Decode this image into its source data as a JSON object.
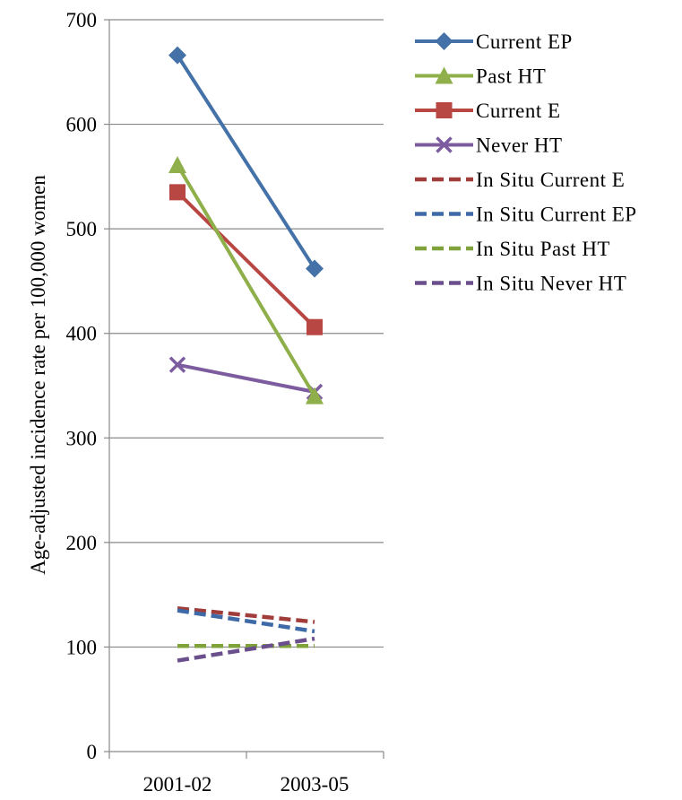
{
  "chart_data": {
    "type": "line",
    "categories": [
      "2001-02",
      "2003-05"
    ],
    "ylabel": "Age-adjusted incidence rate per 100,000 women",
    "ylim": [
      0,
      700
    ],
    "yticks": [
      0,
      100,
      200,
      300,
      400,
      500,
      600,
      700
    ],
    "grid": true,
    "legend_position": "right",
    "series": [
      {
        "name": "Current EP",
        "values": [
          666,
          462
        ],
        "color": "#4472A8",
        "marker": "diamond",
        "dash": false
      },
      {
        "name": "Past HT",
        "values": [
          561,
          340
        ],
        "color": "#8EAF4A",
        "marker": "triangle",
        "dash": false
      },
      {
        "name": "Current E",
        "values": [
          535,
          406
        ],
        "color": "#B84643",
        "marker": "square",
        "dash": false
      },
      {
        "name": "Never HT",
        "values": [
          370,
          344
        ],
        "color": "#7C5C9E",
        "marker": "x",
        "dash": false
      },
      {
        "name": "In Situ Current E",
        "values": [
          137,
          124
        ],
        "color": "#A03C39",
        "marker": "none",
        "dash": true
      },
      {
        "name": "In Situ Current EP",
        "values": [
          135,
          115
        ],
        "color": "#3F6AA8",
        "marker": "none",
        "dash": true
      },
      {
        "name": "In Situ Past HT",
        "values": [
          101,
          101
        ],
        "color": "#7FA33A",
        "marker": "none",
        "dash": true
      },
      {
        "name": "In Situ Never HT",
        "values": [
          87,
          108
        ],
        "color": "#6A4F8C",
        "marker": "none",
        "dash": true
      }
    ]
  }
}
